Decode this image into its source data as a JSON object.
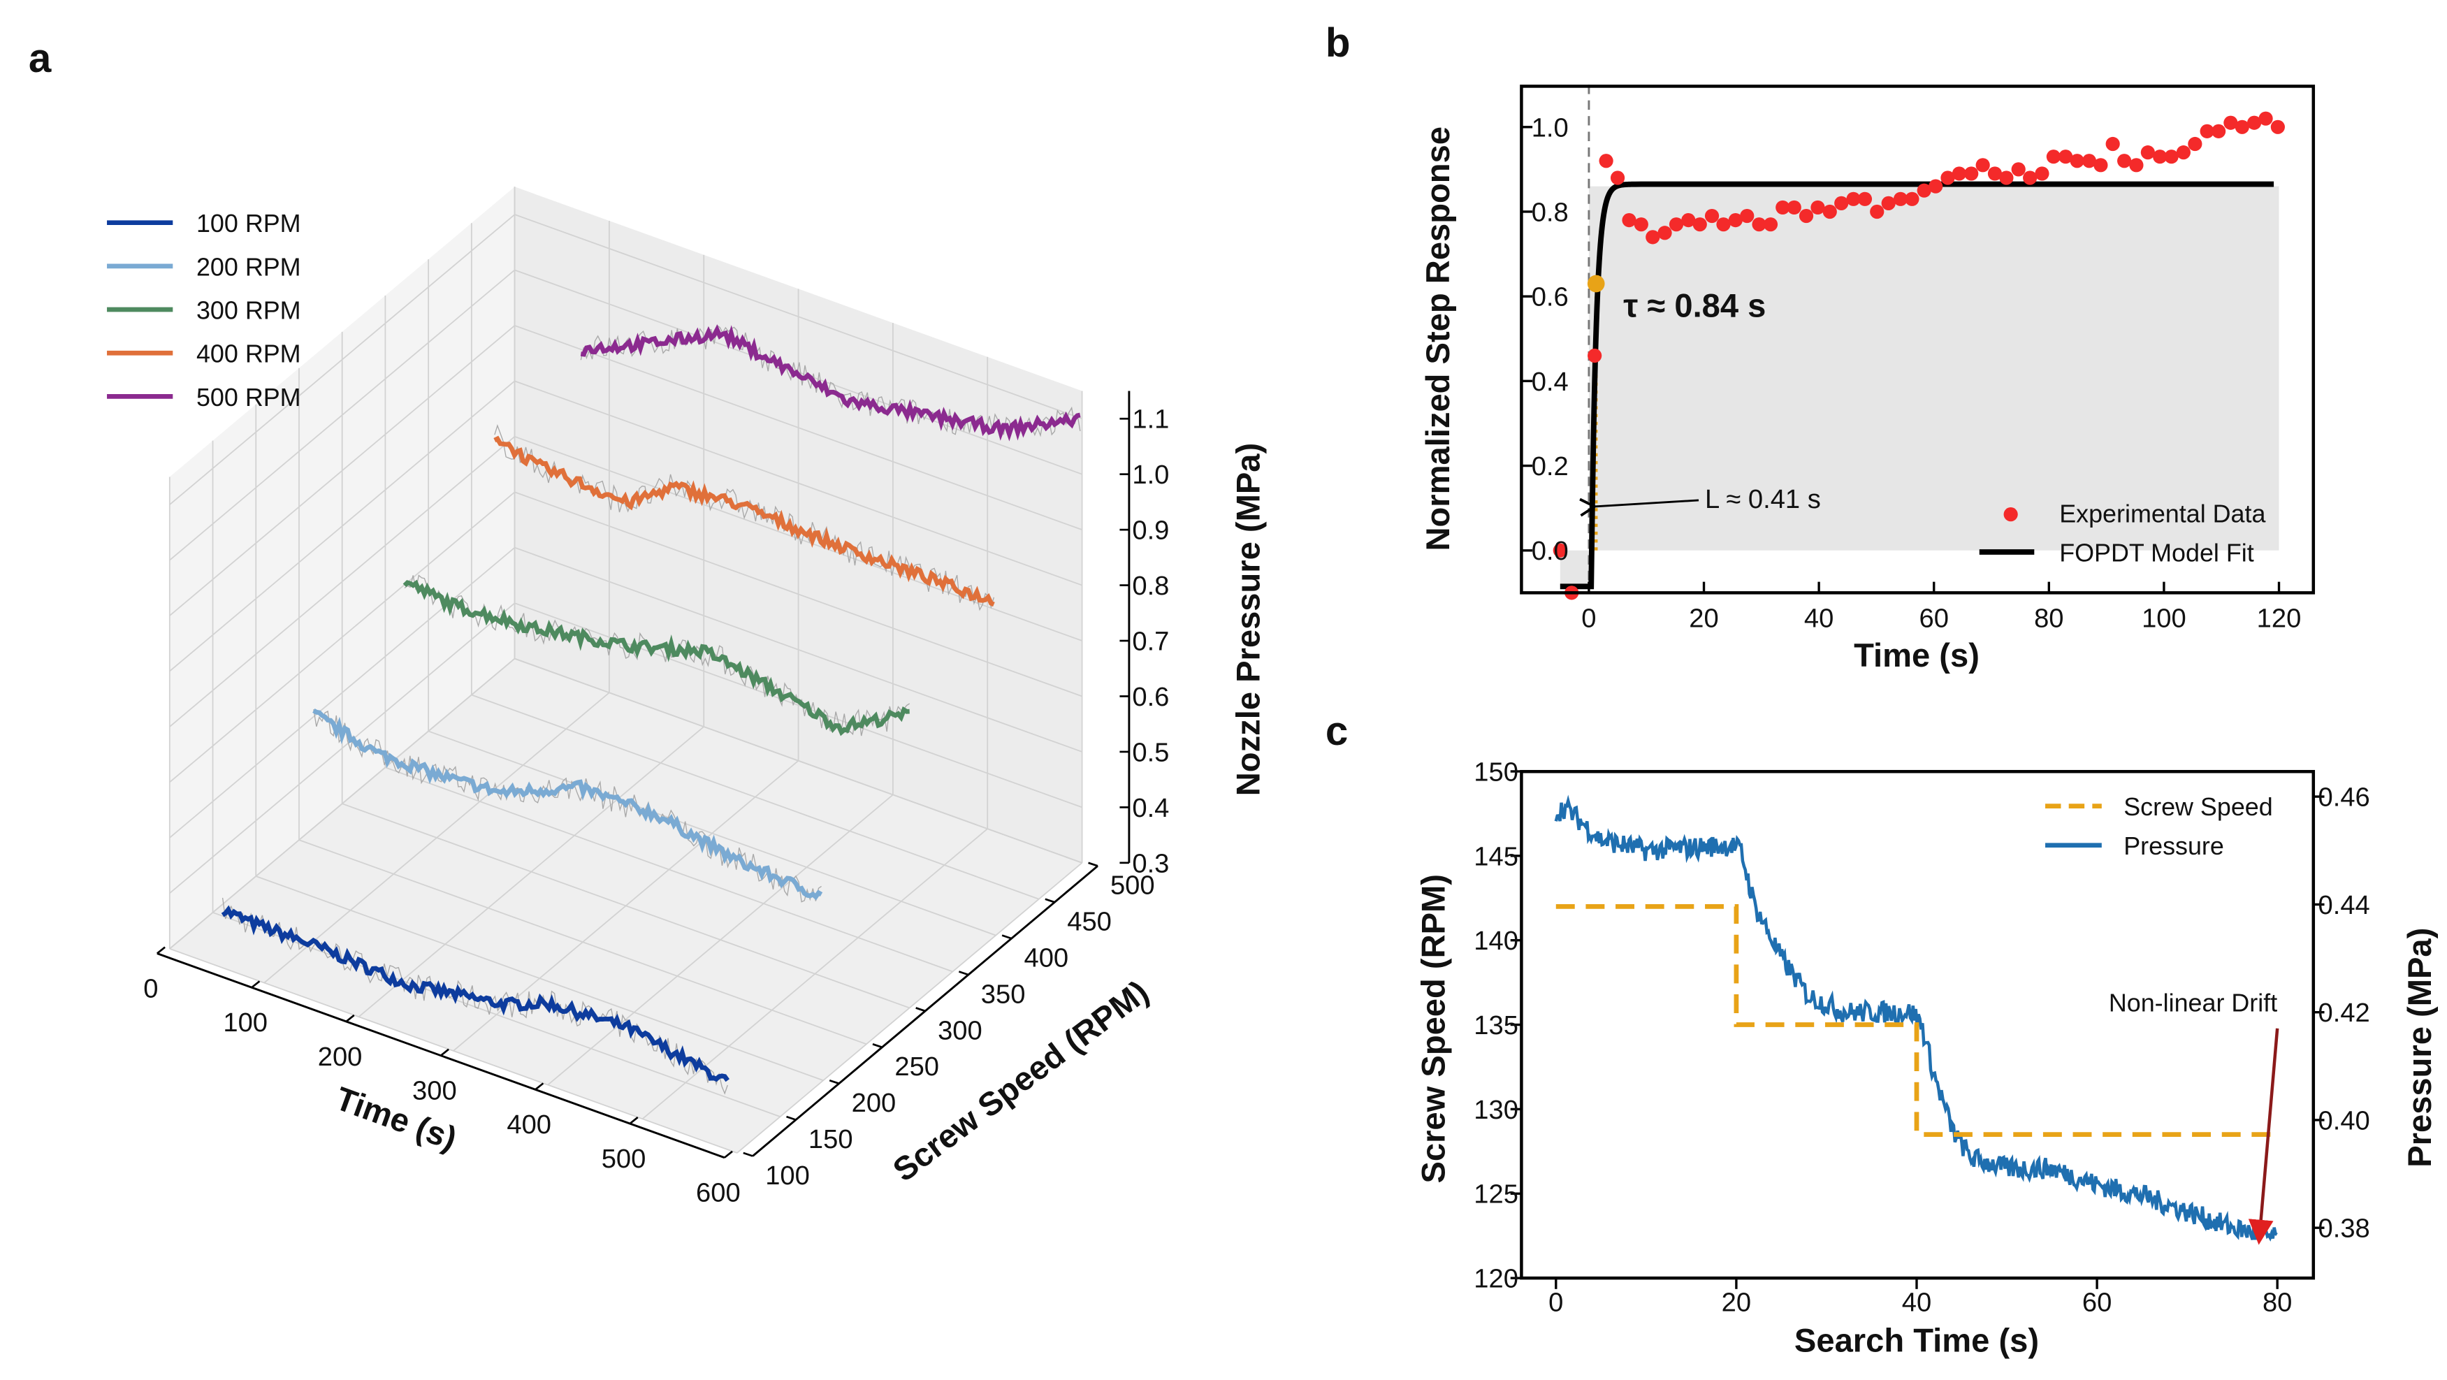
{
  "panel_labels": {
    "a": "a",
    "b": "b",
    "c": "c"
  },
  "chart_data": [
    {
      "id": "a",
      "type": "line3d",
      "xlabel": "Time (s)",
      "ylabel": "Screw Speed (RPM)",
      "zlabel": "Nozzle Pressure (MPa)",
      "xlim": [
        0,
        600
      ],
      "ylim": [
        100,
        500
      ],
      "zlim": [
        0.3,
        1.15
      ],
      "xticks": [
        0,
        100,
        200,
        300,
        400,
        500,
        600
      ],
      "yticks": [
        100,
        150,
        200,
        250,
        300,
        350,
        400,
        450,
        500
      ],
      "zticks": [
        0.3,
        0.4,
        0.5,
        0.6,
        0.7,
        0.8,
        0.9,
        1.0,
        1.1
      ],
      "legend_position": "top-left",
      "series": [
        {
          "name": "100 RPM",
          "speed": 100,
          "color": "#0d3c9e",
          "t": [
            56,
            86,
            153,
            252,
            352,
            401,
            484,
            592
          ],
          "p": [
            0.405,
            0.4,
            0.4,
            0.39,
            0.416,
            0.447,
            0.455,
            0.42
          ]
        },
        {
          "name": "200 RPM",
          "speed": 200,
          "color": "#7aaad3",
          "t": [
            61,
            128,
            194,
            260,
            343,
            426,
            509,
            600
          ],
          "p": [
            0.63,
            0.6,
            0.6,
            0.61,
            0.67,
            0.67,
            0.64,
            0.63
          ]
        },
        {
          "name": "300 RPM",
          "speed": 300,
          "color": "#4e8a5f",
          "t": [
            66,
            119,
            202,
            302,
            385,
            418,
            526,
            600
          ],
          "p": [
            0.74,
            0.73,
            0.74,
            0.77,
            0.81,
            0.8,
            0.76,
            0.83
          ]
        },
        {
          "name": "400 RPM",
          "speed": 400,
          "color": "#e0703a",
          "t": [
            70,
            111,
            211,
            260,
            327,
            426,
            509,
            600
          ],
          "p": [
            0.875,
            0.85,
            0.84,
            0.9,
            0.91,
            0.9,
            0.9,
            0.9
          ]
        },
        {
          "name": "500 RPM",
          "speed": 500,
          "color": "#8b2a8f",
          "t": [
            70,
            136,
            219,
            285,
            352,
            451,
            517,
            600
          ],
          "p": [
            0.9,
            0.95,
            1.02,
            1.0,
            0.98,
            1.01,
            1.03,
            1.1
          ]
        }
      ]
    },
    {
      "id": "b",
      "type": "scatter+line",
      "xlabel": "Time (s)",
      "ylabel": "Normalized Step Response",
      "xlim": [
        -11.7,
        126
      ],
      "ylim": [
        -0.1,
        1.1
      ],
      "xticks": [
        0,
        20,
        40,
        60,
        80,
        100,
        120
      ],
      "yticks": [
        0.0,
        0.2,
        0.4,
        0.6,
        0.8,
        1.0
      ],
      "legend_position": "bottom-right",
      "legend": [
        "Experimental Data",
        "FOPDT Model Fit"
      ],
      "fit": {
        "K_low": -0.085,
        "K_high": 0.865,
        "L": 0.41,
        "tau": 0.84,
        "t_start": -5,
        "t_end": 120
      },
      "tau_point": {
        "t": 1.25,
        "y": 0.63
      },
      "annotations": {
        "tau": "τ ≈ 0.84 s",
        "lag": "L ≈ 0.41 s"
      },
      "colors": {
        "data": "#f42a2a",
        "fit": "#000000",
        "tau": "#e8a317",
        "fill": "#e6e6e6"
      },
      "experimental": {
        "t": [
          -5,
          -3,
          1,
          3,
          5,
          7,
          9.1,
          11.1,
          13.2,
          15.2,
          17.3,
          19.3,
          21.4,
          23.4,
          25.5,
          27.5,
          29.6,
          31.6,
          33.7,
          35.7,
          37.8,
          39.8,
          41.9,
          43.9,
          46,
          48,
          50.1,
          52.1,
          54.2,
          56.2,
          58.3,
          60.3,
          62.4,
          64.4,
          66.5,
          68.5,
          70.6,
          72.6,
          74.7,
          76.7,
          78.8,
          80.8,
          82.9,
          84.9,
          87,
          89,
          91.1,
          93.1,
          95.2,
          97.2,
          99.3,
          101.3,
          103.4,
          105.4,
          107.5,
          109.5,
          111.6,
          113.6,
          115.7,
          117.7,
          119.8
        ],
        "y": [
          0.0,
          -0.1,
          0.46,
          0.92,
          0.88,
          0.78,
          0.77,
          0.74,
          0.75,
          0.77,
          0.78,
          0.77,
          0.79,
          0.77,
          0.78,
          0.79,
          0.77,
          0.77,
          0.81,
          0.81,
          0.79,
          0.81,
          0.8,
          0.82,
          0.83,
          0.83,
          0.8,
          0.82,
          0.83,
          0.83,
          0.85,
          0.86,
          0.88,
          0.89,
          0.89,
          0.91,
          0.89,
          0.88,
          0.9,
          0.88,
          0.89,
          0.93,
          0.93,
          0.92,
          0.92,
          0.91,
          0.96,
          0.92,
          0.91,
          0.94,
          0.93,
          0.93,
          0.94,
          0.96,
          0.99,
          0.99,
          1.01,
          1.0,
          1.01,
          1.02,
          1.0
        ]
      }
    },
    {
      "id": "c",
      "type": "dual-axis line",
      "xlabel": "Search Time (s)",
      "ylabel_left": "Screw Speed (RPM)",
      "ylabel_right": "Pressure (MPa)",
      "xlim": [
        -3.8,
        84
      ],
      "ylim_left": [
        120,
        150
      ],
      "ylim_right": [
        0.3707,
        0.4647
      ],
      "xticks": [
        0,
        20,
        40,
        60,
        80
      ],
      "yticks_left": [
        120,
        125,
        130,
        135,
        140,
        145,
        150
      ],
      "yticks_right": [
        0.38,
        0.4,
        0.42,
        0.44,
        0.46
      ],
      "legend_position": "top-right",
      "legend": [
        "Screw Speed",
        "Pressure"
      ],
      "colors": {
        "speed": "#e8a317",
        "pressure": "#1f6fb0",
        "annotation": "#e02020"
      },
      "screw_speed": {
        "t": [
          0,
          20,
          20,
          40,
          40,
          80
        ],
        "rpm": [
          142,
          142,
          135,
          135,
          128.5,
          128.5
        ]
      },
      "pressure": {
        "t": [
          0,
          1,
          5,
          10,
          19.5,
          20.5,
          22,
          25,
          28,
          32,
          39.5,
          40.5,
          42,
          44,
          46,
          50,
          55,
          60,
          65,
          70,
          75,
          80
        ],
        "mpa": [
          0.457,
          0.458,
          0.452,
          0.45,
          0.451,
          0.45,
          0.44,
          0.43,
          0.423,
          0.42,
          0.42,
          0.418,
          0.408,
          0.398,
          0.393,
          0.391,
          0.391,
          0.388,
          0.386,
          0.383,
          0.38,
          0.378
        ]
      },
      "annotation": {
        "text": "Non-linear Drift",
        "arrow_from": [
          80,
          0.417
        ],
        "arrow_to": [
          78,
          0.378
        ]
      }
    }
  ]
}
